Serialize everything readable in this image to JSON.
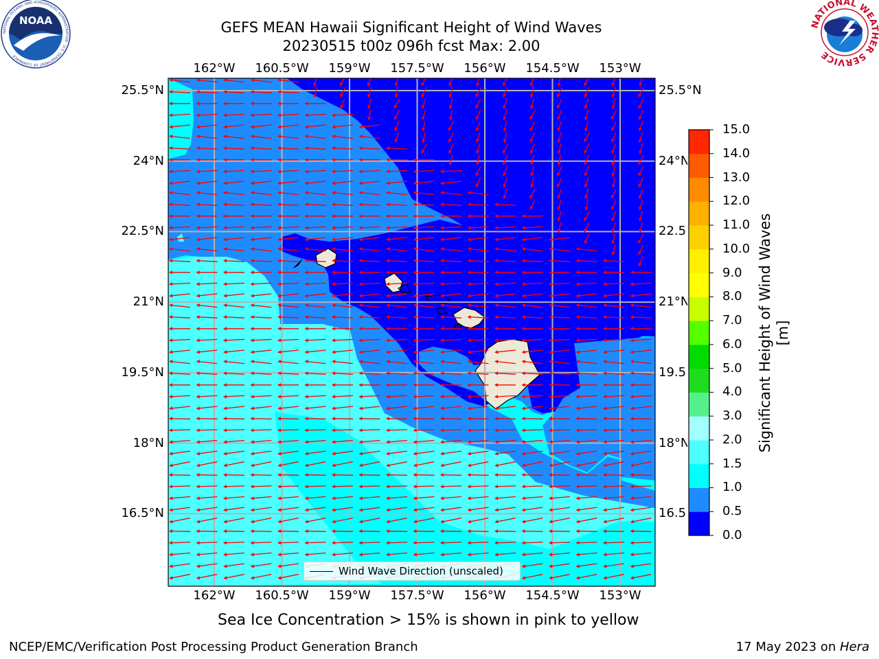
{
  "title": {
    "line1": "GEFS MEAN Hawaii Significant Height of Wind Waves",
    "line2": "20230515 t00z 096h fcst   Max: 2.00"
  },
  "logos": {
    "left_text": "NOAA",
    "left_ring": "NATIONAL OCEANIC AND ATMOSPHERIC ADMINISTRATION · U.S. DEPARTMENT OF COMMERCE",
    "right_ring": "NATIONAL WEATHER SERVICE"
  },
  "map": {
    "lon_labels": [
      "162°W",
      "160.5°W",
      "159°W",
      "157.5°W",
      "156°W",
      "154.5°W",
      "153°W"
    ],
    "lat_labels": [
      "25.5°N",
      "24°N",
      "22.5°N",
      "21°N",
      "19.5°N",
      "18°N",
      "16.5°N"
    ],
    "lon_range": [
      -163.0,
      -152.6
    ],
    "lat_range": [
      15.2,
      26.0
    ],
    "legend_label": "Wind Wave Direction (unscaled)",
    "arrow_color": "#ff0000",
    "land_color": "#ede9d9"
  },
  "colorbar": {
    "title": "Significant Height of Wind Waves [m]",
    "tick_labels": [
      "0.0",
      "0.5",
      "1.0",
      "1.5",
      "2.0",
      "3.0",
      "4.0",
      "5.0",
      "6.0",
      "7.0",
      "8.0",
      "9.0",
      "10.0",
      "11.0",
      "12.0",
      "13.0",
      "14.0",
      "15.0"
    ],
    "levels": [
      0.0,
      0.5,
      1.0,
      1.5,
      2.0,
      3.0,
      4.0,
      5.0,
      6.0,
      7.0,
      8.0,
      9.0,
      10.0,
      11.0,
      12.0,
      13.0,
      14.0,
      15.0
    ],
    "colors": [
      "#0000ff",
      "#1e8cff",
      "#00ffff",
      "#4dffff",
      "#a3ffff",
      "#55f08c",
      "#1edc1e",
      "#00dc00",
      "#55ff00",
      "#c8ff00",
      "#ffff00",
      "#fff000",
      "#ffd000",
      "#ffb000",
      "#ff8c00",
      "#ff5a00",
      "#ff2800"
    ]
  },
  "notes": {
    "sea_ice": "Sea Ice Concentration > 15% is shown in pink to yellow",
    "credit": "NCEP/EMC/Verification Post Processing Product Generation Branch",
    "date": "17 May 2023 on ",
    "machine": "Hera"
  }
}
